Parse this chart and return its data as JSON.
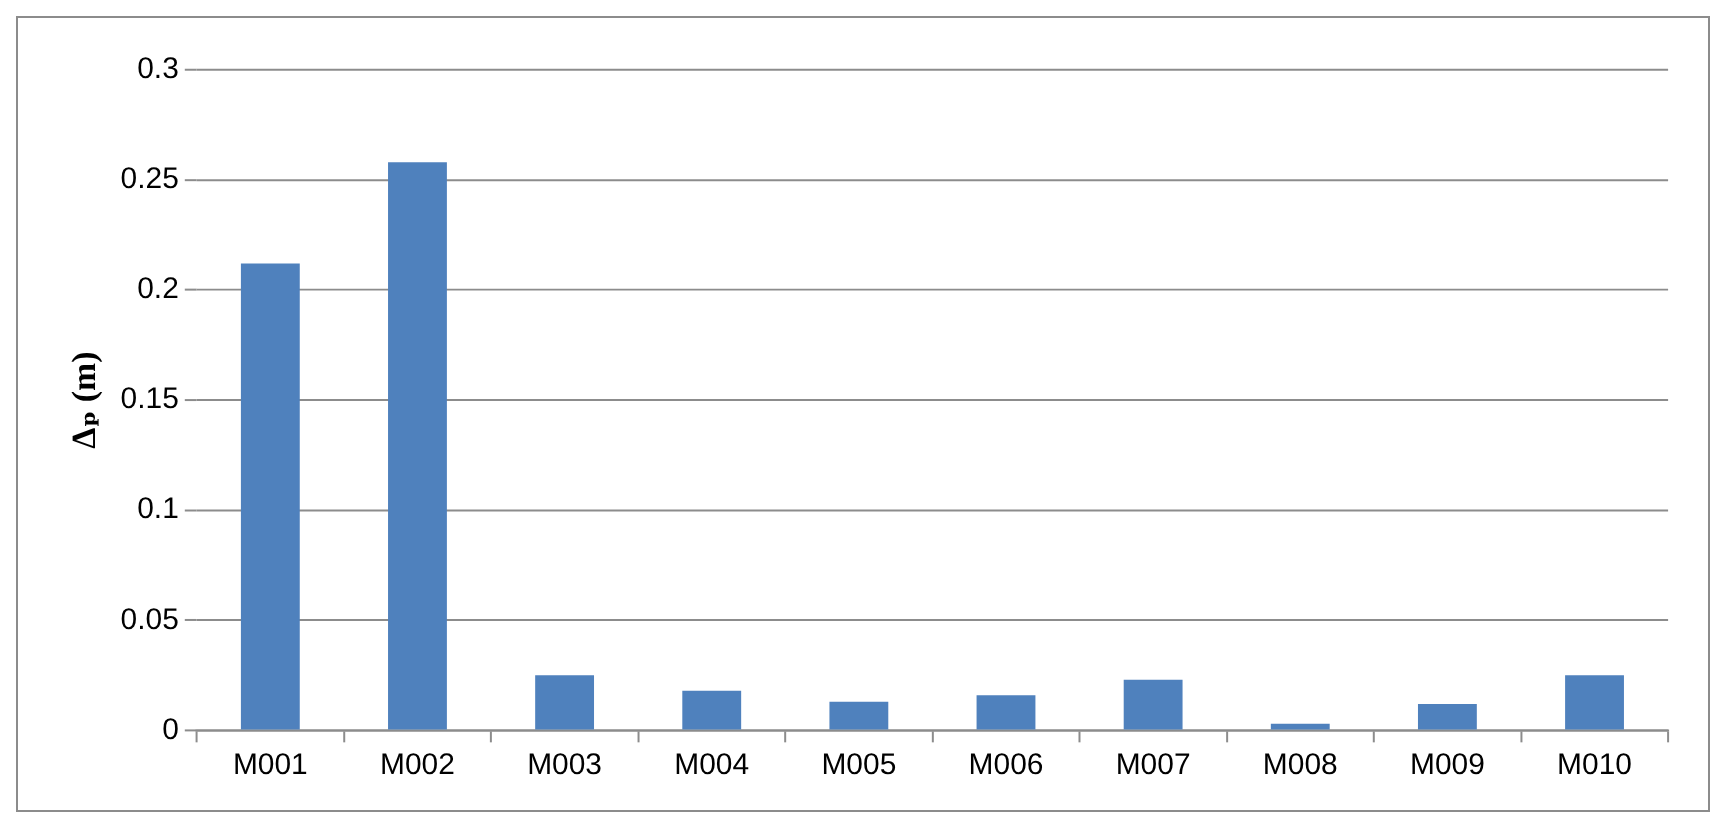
{
  "chart_data": {
    "type": "bar",
    "ylabel": "Δₚ (m)",
    "categories": [
      "M001",
      "M002",
      "M003",
      "M004",
      "M005",
      "M006",
      "M007",
      "M008",
      "M009",
      "M010"
    ],
    "values": [
      0.212,
      0.258,
      0.025,
      0.018,
      0.013,
      0.016,
      0.023,
      0.003,
      0.012,
      0.025
    ],
    "color": "#4f81bd",
    "ylim": [
      0,
      0.3
    ],
    "yticks": [
      0,
      0.05,
      0.1,
      0.15,
      0.2,
      0.25,
      0.3
    ],
    "grid": "y",
    "legend": false
  }
}
